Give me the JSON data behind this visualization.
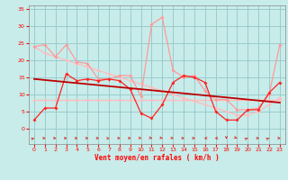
{
  "bg_color": "#c8ecea",
  "grid_color": "#99cccc",
  "xlabel": "Vent moyen/en rafales ( km/h )",
  "x": [
    0,
    1,
    2,
    3,
    4,
    5,
    6,
    7,
    8,
    9,
    10,
    11,
    12,
    13,
    14,
    15,
    16,
    17,
    18,
    19,
    20,
    21,
    22,
    23
  ],
  "ylim": [
    -4.5,
    36
  ],
  "xlim": [
    -0.5,
    23.5
  ],
  "yticks": [
    0,
    5,
    10,
    15,
    20,
    25,
    30,
    35
  ],
  "xticks": [
    0,
    1,
    2,
    3,
    4,
    5,
    6,
    7,
    8,
    9,
    10,
    11,
    12,
    13,
    14,
    15,
    16,
    17,
    18,
    19,
    20,
    21,
    22,
    23
  ],
  "line_flat_pink": [
    8.5,
    8.5,
    8.5,
    8.5,
    8.5,
    8.5,
    8.5,
    8.5,
    8.5,
    8.5,
    8.5,
    8.5,
    8.5,
    8.5,
    8.5,
    8.5,
    8.5,
    8.5,
    8.5,
    8.5,
    8.5,
    8.5,
    8.5,
    8.5
  ],
  "line_desc_pink": [
    24,
    22,
    21,
    20,
    19,
    18,
    17,
    16,
    15,
    14,
    13,
    12,
    11,
    10,
    9,
    8,
    7,
    6,
    5,
    4,
    4,
    5,
    7,
    9
  ],
  "line_rafales_pink": [
    24,
    24.5,
    21,
    24.5,
    19.5,
    19,
    14.5,
    14.5,
    15.5,
    15.5,
    9.5,
    30.5,
    32.5,
    17,
    15,
    15.5,
    11,
    8.5,
    8.5,
    5.5,
    5.5,
    6,
    10,
    24.5
  ],
  "line_moyen_red": [
    2.5,
    6,
    6,
    16,
    14,
    14.5,
    14,
    14.5,
    14,
    11.5,
    4.5,
    3,
    7,
    13.5,
    15.5,
    15,
    13.5,
    5,
    2.5,
    2.5,
    5.5,
    5.5,
    10.5,
    13.5
  ],
  "line_trend_dark": [
    14.5,
    14.2,
    13.9,
    13.6,
    13.3,
    13.0,
    12.7,
    12.4,
    12.1,
    11.8,
    11.5,
    11.2,
    10.9,
    10.6,
    10.3,
    10.0,
    9.7,
    9.4,
    9.1,
    8.8,
    8.5,
    8.2,
    7.9,
    7.6
  ],
  "color_light_pink": "#ffbbbb",
  "color_pink": "#ff9999",
  "color_red": "#ff2222",
  "color_dark_red": "#bb0000",
  "arrow_color": "#dd2222",
  "arrow_angles_deg": [
    45,
    0,
    0,
    0,
    0,
    0,
    0,
    20,
    0,
    -10,
    -20,
    -30,
    -30,
    -20,
    0,
    0,
    180,
    180,
    270,
    -45,
    45,
    0,
    45,
    0
  ]
}
